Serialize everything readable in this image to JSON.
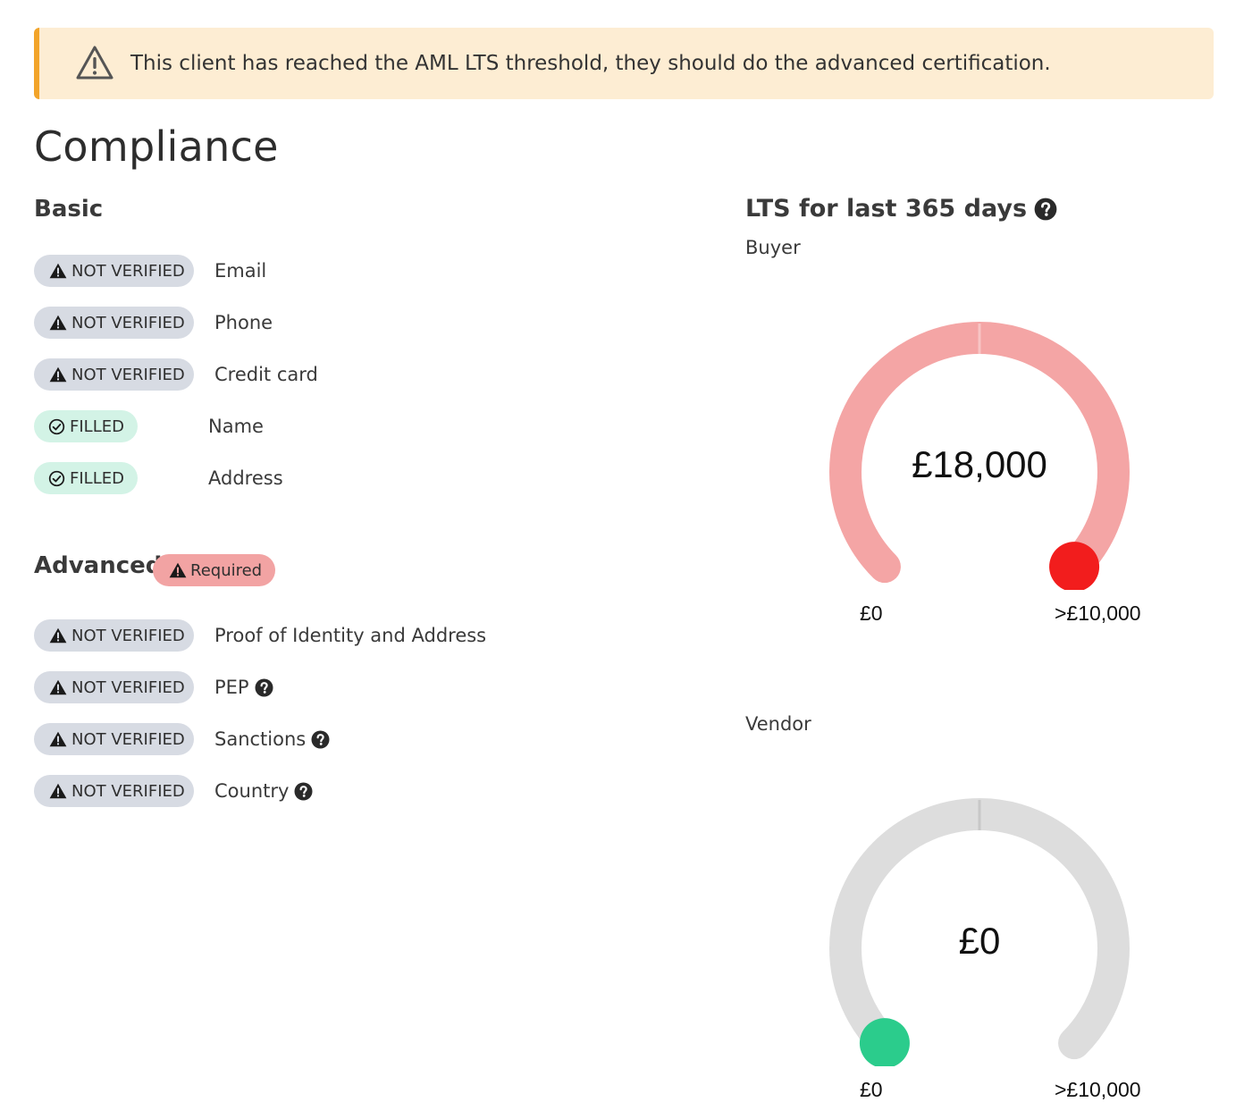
{
  "alert": {
    "message": "This client has reached the AML LTS threshold, they should do the advanced certification.",
    "icon": "warning-triangle-icon",
    "accent_color": "#f2a42a",
    "background_color": "#fdedd3"
  },
  "page_title": "Compliance",
  "basic": {
    "title": "Basic",
    "items": [
      {
        "status": "NOT VERIFIED",
        "label": "Email",
        "status_type": "not-verified"
      },
      {
        "status": "NOT VERIFIED",
        "label": "Phone",
        "status_type": "not-verified"
      },
      {
        "status": "NOT VERIFIED",
        "label": "Credit card",
        "status_type": "not-verified"
      },
      {
        "status": "FILLED",
        "label": "Name",
        "status_type": "filled"
      },
      {
        "status": "FILLED",
        "label": "Address",
        "status_type": "filled"
      }
    ]
  },
  "advanced": {
    "title": "Advanced",
    "badge": "Required",
    "items": [
      {
        "status": "NOT VERIFIED",
        "label": "Proof of Identity and Address",
        "help": false
      },
      {
        "status": "NOT VERIFIED",
        "label": "PEP",
        "help": true
      },
      {
        "status": "NOT VERIFIED",
        "label": "Sanctions",
        "help": true
      },
      {
        "status": "NOT VERIFIED",
        "label": "Country",
        "help": true
      }
    ]
  },
  "lts": {
    "title": "LTS for last 365 days",
    "buyer": {
      "label": "Buyer",
      "value": "£18,000",
      "min": "£0",
      "max": ">£10,000",
      "fraction": 1.0,
      "track_color": "#f4a5a5",
      "marker_color": "#f21d1d"
    },
    "vendor": {
      "label": "Vendor",
      "value": "£0",
      "min": "£0",
      "max": ">£10,000",
      "fraction": 0.0,
      "track_color": "#dddddd",
      "marker_color": "#2bcc8c"
    }
  },
  "colors": {
    "pill_grey": "#d7dbe3",
    "pill_green": "#d3f3e6",
    "required_badge": "#f2a3a3"
  }
}
